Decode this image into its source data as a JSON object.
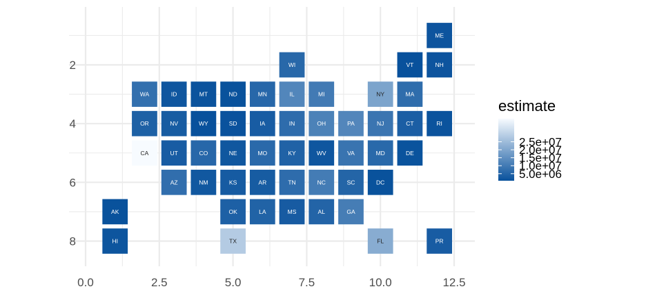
{
  "chart_data": {
    "type": "heatmap",
    "title": "",
    "xlabel": "",
    "ylabel": "",
    "xlim": [
      0,
      12.5
    ],
    "ylim": [
      8.5,
      0.5
    ],
    "y_reversed": true,
    "x_ticks": [
      0.0,
      2.5,
      5.0,
      7.5,
      10.0,
      12.5
    ],
    "x_tick_labels": [
      "0.0",
      "2.5",
      "5.0",
      "7.5",
      "10.0",
      "12.5"
    ],
    "y_ticks": [
      2,
      4,
      6,
      8
    ],
    "y_tick_labels": [
      "2",
      "4",
      "6",
      "8"
    ],
    "grid": true,
    "legend": {
      "title": "estimate",
      "placement": "right",
      "min": 580000,
      "max": 39500000,
      "breaks": [
        25000000,
        20000000,
        15000000,
        10000000,
        5000000
      ],
      "break_labels": [
        "2.5e+07",
        "2.0e+07",
        "1.5e+07",
        "1.0e+07",
        "5.0e+06"
      ],
      "low_color": "#08519c",
      "high_color": "#f7fbff"
    },
    "tiles": [
      {
        "state": "ME",
        "x": 12,
        "y": 1,
        "estimate": 1340000
      },
      {
        "state": "WI",
        "x": 7,
        "y": 2,
        "estimate": 5800000
      },
      {
        "state": "VT",
        "x": 11,
        "y": 2,
        "estimate": 640000
      },
      {
        "state": "NH",
        "x": 12,
        "y": 2,
        "estimate": 1360000
      },
      {
        "state": "WA",
        "x": 2,
        "y": 3,
        "estimate": 7600000
      },
      {
        "state": "ID",
        "x": 3,
        "y": 3,
        "estimate": 1800000
      },
      {
        "state": "MT",
        "x": 4,
        "y": 3,
        "estimate": 1080000
      },
      {
        "state": "ND",
        "x": 5,
        "y": 3,
        "estimate": 760000
      },
      {
        "state": "MN",
        "x": 6,
        "y": 3,
        "estimate": 5600000
      },
      {
        "state": "IL",
        "x": 7,
        "y": 3,
        "estimate": 12700000
      },
      {
        "state": "MI",
        "x": 8,
        "y": 3,
        "estimate": 10000000
      },
      {
        "state": "NY",
        "x": 10,
        "y": 3,
        "estimate": 19500000
      },
      {
        "state": "MA",
        "x": 11,
        "y": 3,
        "estimate": 6900000
      },
      {
        "state": "OR",
        "x": 2,
        "y": 4,
        "estimate": 4200000
      },
      {
        "state": "NV",
        "x": 3,
        "y": 4,
        "estimate": 3000000
      },
      {
        "state": "WY",
        "x": 4,
        "y": 4,
        "estimate": 580000
      },
      {
        "state": "SD",
        "x": 5,
        "y": 4,
        "estimate": 880000
      },
      {
        "state": "IA",
        "x": 6,
        "y": 4,
        "estimate": 3150000
      },
      {
        "state": "IN",
        "x": 7,
        "y": 4,
        "estimate": 6700000
      },
      {
        "state": "OH",
        "x": 8,
        "y": 4,
        "estimate": 11700000
      },
      {
        "state": "PA",
        "x": 9,
        "y": 4,
        "estimate": 12800000
      },
      {
        "state": "NJ",
        "x": 10,
        "y": 4,
        "estimate": 8900000
      },
      {
        "state": "CT",
        "x": 11,
        "y": 4,
        "estimate": 3600000
      },
      {
        "state": "RI",
        "x": 12,
        "y": 4,
        "estimate": 1060000
      },
      {
        "state": "CA",
        "x": 2,
        "y": 5,
        "estimate": 39500000
      },
      {
        "state": "UT",
        "x": 3,
        "y": 5,
        "estimate": 3200000
      },
      {
        "state": "CO",
        "x": 4,
        "y": 5,
        "estimate": 5700000
      },
      {
        "state": "NE",
        "x": 5,
        "y": 5,
        "estimate": 1930000
      },
      {
        "state": "MO",
        "x": 6,
        "y": 5,
        "estimate": 6100000
      },
      {
        "state": "KY",
        "x": 7,
        "y": 5,
        "estimate": 4500000
      },
      {
        "state": "WV",
        "x": 8,
        "y": 5,
        "estimate": 1800000
      },
      {
        "state": "VA",
        "x": 9,
        "y": 5,
        "estimate": 8500000
      },
      {
        "state": "MD",
        "x": 10,
        "y": 5,
        "estimate": 6000000
      },
      {
        "state": "DE",
        "x": 11,
        "y": 5,
        "estimate": 970000
      },
      {
        "state": "AZ",
        "x": 3,
        "y": 6,
        "estimate": 7200000
      },
      {
        "state": "NM",
        "x": 4,
        "y": 6,
        "estimate": 2100000
      },
      {
        "state": "KS",
        "x": 5,
        "y": 6,
        "estimate": 2900000
      },
      {
        "state": "AR",
        "x": 6,
        "y": 6,
        "estimate": 3000000
      },
      {
        "state": "TN",
        "x": 7,
        "y": 6,
        "estimate": 6800000
      },
      {
        "state": "NC",
        "x": 8,
        "y": 6,
        "estimate": 10400000
      },
      {
        "state": "SC",
        "x": 9,
        "y": 6,
        "estimate": 5100000
      },
      {
        "state": "DC",
        "x": 10,
        "y": 6,
        "estimate": 700000
      },
      {
        "state": "AK",
        "x": 1,
        "y": 7,
        "estimate": 730000
      },
      {
        "state": "OK",
        "x": 5,
        "y": 7,
        "estimate": 3950000
      },
      {
        "state": "LA",
        "x": 6,
        "y": 7,
        "estimate": 4650000
      },
      {
        "state": "MS",
        "x": 7,
        "y": 7,
        "estimate": 2980000
      },
      {
        "state": "AL",
        "x": 8,
        "y": 7,
        "estimate": 4900000
      },
      {
        "state": "GA",
        "x": 9,
        "y": 7,
        "estimate": 10600000
      },
      {
        "state": "HI",
        "x": 1,
        "y": 8,
        "estimate": 1420000
      },
      {
        "state": "TX",
        "x": 5,
        "y": 8,
        "estimate": 28600000
      },
      {
        "state": "FL",
        "x": 10,
        "y": 8,
        "estimate": 21400000
      },
      {
        "state": "PR",
        "x": 12,
        "y": 8,
        "estimate": 3200000
      }
    ]
  }
}
